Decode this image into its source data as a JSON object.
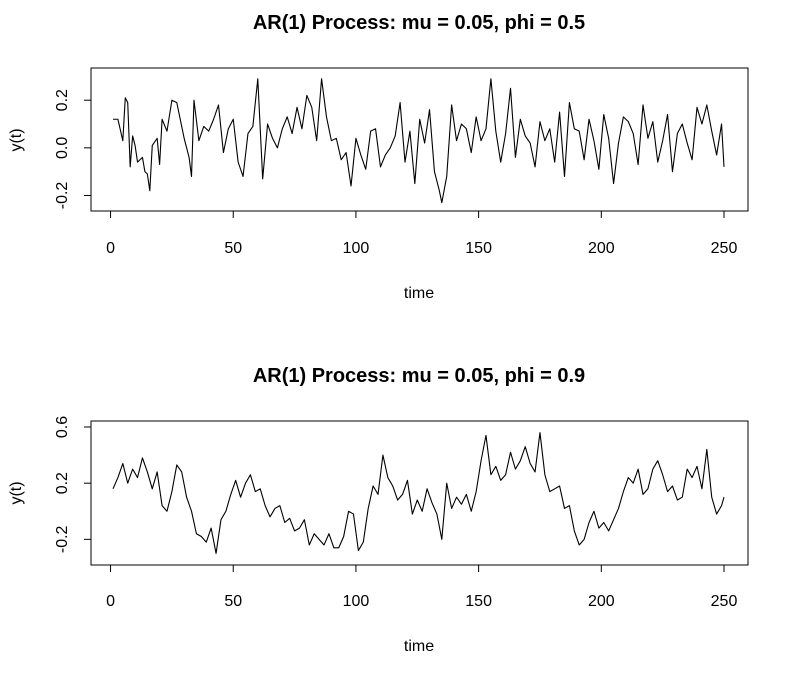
{
  "chart_data": [
    {
      "type": "line",
      "title": "AR(1) Process: mu = 0.05, phi = 0.5",
      "xlabel": "time",
      "ylabel": "y(t)",
      "xlim": [
        1,
        250
      ],
      "ylim": [
        -0.24,
        0.31
      ],
      "xticks": [
        0,
        50,
        100,
        150,
        200,
        250
      ],
      "yticks": [
        -0.2,
        0.0,
        0.2
      ],
      "ytick_labels": [
        "-0.2",
        "0.0",
        "0.2"
      ],
      "grid": false,
      "series": [
        {
          "x": [
            1,
            3,
            5,
            6,
            7,
            8,
            9,
            10,
            11,
            13,
            14,
            15,
            16,
            17,
            19,
            20,
            21,
            23,
            25,
            27,
            30,
            32,
            33,
            34,
            36,
            38,
            40,
            42,
            44,
            46,
            48,
            50,
            52,
            54,
            56,
            58,
            60,
            62,
            64,
            66,
            68,
            70,
            72,
            74,
            76,
            78,
            80,
            82,
            84,
            86,
            88,
            90,
            92,
            94,
            96,
            98,
            100,
            102,
            104,
            106,
            108,
            110,
            112,
            114,
            116,
            118,
            120,
            122,
            124,
            126,
            128,
            130,
            132,
            134,
            135,
            137,
            139,
            141,
            143,
            145,
            147,
            149,
            151,
            153,
            155,
            157,
            159,
            161,
            163,
            165,
            167,
            169,
            171,
            173,
            175,
            177,
            179,
            181,
            183,
            185,
            187,
            189,
            191,
            193,
            195,
            197,
            199,
            201,
            203,
            205,
            207,
            209,
            211,
            213,
            215,
            217,
            219,
            221,
            223,
            225,
            227,
            229,
            231,
            233,
            235,
            237,
            239,
            241,
            243,
            245,
            247,
            249,
            250
          ],
          "values": [
            0.12,
            0.12,
            0.03,
            0.21,
            0.19,
            -0.08,
            0.05,
            0.01,
            -0.06,
            -0.04,
            -0.1,
            -0.11,
            -0.18,
            0.01,
            0.04,
            -0.07,
            0.12,
            0.07,
            0.2,
            0.19,
            0.04,
            -0.04,
            -0.12,
            0.2,
            0.03,
            0.09,
            0.07,
            0.12,
            0.18,
            -0.02,
            0.08,
            0.12,
            -0.06,
            -0.12,
            0.06,
            0.09,
            0.29,
            -0.13,
            0.1,
            0.04,
            0.0,
            0.08,
            0.13,
            0.06,
            0.17,
            0.08,
            0.22,
            0.17,
            0.03,
            0.29,
            0.13,
            0.03,
            0.04,
            -0.05,
            -0.02,
            -0.16,
            0.04,
            -0.03,
            -0.09,
            0.07,
            0.08,
            -0.08,
            -0.03,
            0.0,
            0.05,
            0.19,
            -0.06,
            0.07,
            -0.15,
            0.12,
            0.02,
            0.16,
            -0.1,
            -0.18,
            -0.23,
            -0.12,
            0.18,
            0.03,
            0.1,
            0.08,
            -0.02,
            0.13,
            0.03,
            0.08,
            0.29,
            0.07,
            -0.06,
            0.06,
            0.25,
            -0.04,
            0.12,
            0.05,
            0.02,
            -0.08,
            0.11,
            0.03,
            0.08,
            -0.06,
            0.15,
            -0.12,
            0.19,
            0.08,
            0.07,
            -0.05,
            0.12,
            0.03,
            -0.09,
            0.14,
            0.04,
            -0.15,
            0.02,
            0.13,
            0.11,
            0.06,
            -0.07,
            0.18,
            0.04,
            0.11,
            -0.06,
            0.03,
            0.14,
            -0.1,
            0.06,
            0.1,
            0.02,
            -0.05,
            0.17,
            0.1,
            0.18,
            0.07,
            -0.03,
            0.1,
            -0.08
          ]
        }
      ]
    },
    {
      "type": "line",
      "title": "AR(1) Process: mu = 0.05, phi = 0.9",
      "xlabel": "time",
      "ylabel": "y(t)",
      "xlim": [
        1,
        250
      ],
      "ylim": [
        -0.34,
        0.6
      ],
      "xticks": [
        0,
        50,
        100,
        150,
        200,
        250
      ],
      "yticks": [
        -0.2,
        0.2,
        0.6
      ],
      "ytick_labels": [
        "-0.2",
        "0.2",
        "0.6"
      ],
      "grid": false,
      "series": [
        {
          "x": [
            1,
            3,
            5,
            7,
            9,
            11,
            13,
            15,
            17,
            19,
            21,
            23,
            25,
            27,
            29,
            31,
            33,
            35,
            37,
            39,
            41,
            43,
            45,
            47,
            49,
            51,
            53,
            55,
            57,
            59,
            61,
            63,
            65,
            67,
            69,
            71,
            73,
            75,
            77,
            79,
            81,
            83,
            85,
            87,
            89,
            91,
            93,
            95,
            97,
            99,
            101,
            103,
            105,
            107,
            109,
            111,
            113,
            115,
            117,
            119,
            121,
            123,
            125,
            127,
            129,
            131,
            133,
            135,
            137,
            139,
            141,
            143,
            145,
            147,
            149,
            151,
            153,
            155,
            157,
            159,
            161,
            163,
            165,
            167,
            169,
            171,
            173,
            175,
            177,
            179,
            181,
            183,
            185,
            187,
            189,
            191,
            193,
            195,
            197,
            199,
            201,
            203,
            205,
            207,
            209,
            211,
            213,
            215,
            217,
            219,
            221,
            223,
            225,
            227,
            229,
            231,
            233,
            235,
            237,
            239,
            241,
            243,
            245,
            247,
            249,
            250
          ],
          "values": [
            0.16,
            0.24,
            0.34,
            0.2,
            0.3,
            0.24,
            0.38,
            0.28,
            0.16,
            0.28,
            0.04,
            0.0,
            0.14,
            0.33,
            0.28,
            0.1,
            0.0,
            -0.16,
            -0.18,
            -0.22,
            -0.12,
            -0.3,
            -0.06,
            0.0,
            0.12,
            0.22,
            0.1,
            0.2,
            0.26,
            0.14,
            0.16,
            0.04,
            -0.04,
            0.02,
            0.04,
            -0.08,
            -0.05,
            -0.14,
            -0.12,
            -0.06,
            -0.24,
            -0.16,
            -0.2,
            -0.24,
            -0.16,
            -0.26,
            -0.26,
            -0.18,
            0.0,
            -0.02,
            -0.28,
            -0.22,
            0.02,
            0.18,
            0.12,
            0.4,
            0.24,
            0.18,
            0.08,
            0.12,
            0.22,
            -0.02,
            0.08,
            0.0,
            0.16,
            0.06,
            -0.02,
            -0.2,
            0.2,
            0.02,
            0.1,
            0.05,
            0.12,
            0.0,
            0.14,
            0.36,
            0.54,
            0.26,
            0.32,
            0.22,
            0.26,
            0.42,
            0.3,
            0.36,
            0.46,
            0.34,
            0.28,
            0.56,
            0.26,
            0.14,
            0.16,
            0.18,
            0.02,
            0.04,
            -0.14,
            -0.24,
            -0.2,
            -0.08,
            0.0,
            -0.12,
            -0.08,
            -0.14,
            -0.06,
            0.02,
            0.14,
            0.24,
            0.2,
            0.3,
            0.12,
            0.16,
            0.3,
            0.36,
            0.26,
            0.14,
            0.18,
            0.08,
            0.1,
            0.3,
            0.24,
            0.32,
            0.16,
            0.44,
            0.1,
            -0.02,
            0.04,
            0.1
          ]
        }
      ]
    }
  ]
}
